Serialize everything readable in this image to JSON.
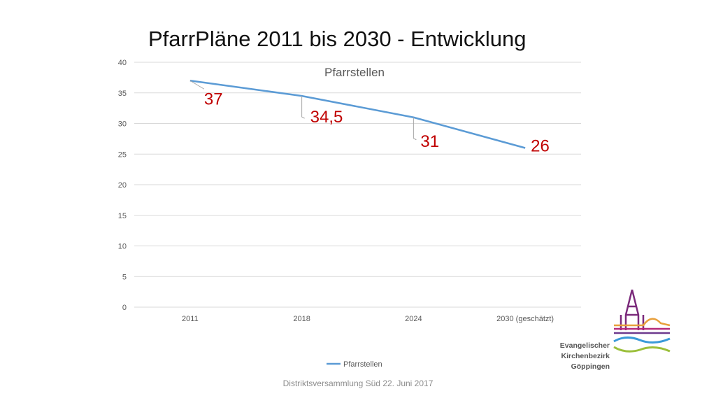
{
  "slide": {
    "title": "PfarrPläne 2011 bis 2030 - Entwicklung",
    "footer": "Distriktsversammlung Süd 22. Juni 2017"
  },
  "chart_data": {
    "type": "line",
    "title": "Pfarrstellen",
    "categories": [
      "2011",
      "2018",
      "2024",
      "2030 (geschätzt)"
    ],
    "series": [
      {
        "name": "Pfarrstellen",
        "values": [
          37,
          34.5,
          31,
          26
        ],
        "data_labels": [
          "37",
          "34,5",
          "31",
          "26"
        ],
        "color": "#5b9bd5"
      }
    ],
    "ylim": [
      0,
      40
    ],
    "yticks": [
      0,
      5,
      10,
      15,
      20,
      25,
      30,
      35,
      40
    ],
    "grid": true,
    "legend": "bottom",
    "data_label_color": "#c00000"
  },
  "logo": {
    "lines": [
      "Evangelischer",
      "Kirchenbezirk",
      "Göppingen"
    ],
    "colors": {
      "spire": "#7b2a7b",
      "orange": "#e8a03c",
      "magenta": "#b5297a",
      "purple": "#6d3a8e",
      "blue": "#3a9ad9",
      "green": "#9bbf3b"
    }
  }
}
